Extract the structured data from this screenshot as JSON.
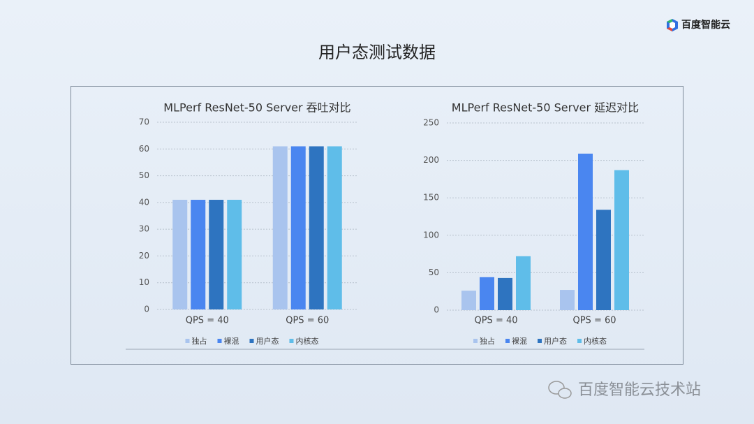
{
  "header": {
    "title": "用户态测试数据",
    "logo": "百度智能云"
  },
  "watermark": "百度智能云技术站",
  "chart_data": [
    {
      "type": "bar",
      "title": "MLPerf ResNet-50 Server 吞吐对比",
      "categories": [
        "QPS = 40",
        "QPS = 60"
      ],
      "series": [
        {
          "name": "独占",
          "color": "#a9c4ee",
          "values": [
            41,
            61
          ]
        },
        {
          "name": "裸混",
          "color": "#4a86f0",
          "values": [
            41,
            61
          ]
        },
        {
          "name": "用户态",
          "color": "#2e74c0",
          "values": [
            41,
            61
          ]
        },
        {
          "name": "内核态",
          "color": "#5fbde9",
          "values": [
            41,
            61
          ]
        }
      ],
      "ylim": [
        0,
        70
      ],
      "yticks": [
        0,
        10,
        20,
        30,
        40,
        50,
        60,
        70
      ],
      "grid": true,
      "legend": "bottom"
    },
    {
      "type": "bar",
      "title": "MLPerf ResNet-50 Server 延迟对比",
      "categories": [
        "QPS = 40",
        "QPS = 60"
      ],
      "series": [
        {
          "name": "独占",
          "color": "#a9c4ee",
          "values": [
            26,
            27
          ]
        },
        {
          "name": "裸混",
          "color": "#4a86f0",
          "values": [
            44,
            209
          ]
        },
        {
          "name": "用户态",
          "color": "#2e74c0",
          "values": [
            43,
            134
          ]
        },
        {
          "name": "内核态",
          "color": "#5fbde9",
          "values": [
            72,
            187
          ]
        }
      ],
      "ylim": [
        0,
        250
      ],
      "yticks": [
        0,
        50,
        100,
        150,
        200,
        250
      ],
      "grid": true,
      "legend": "bottom"
    }
  ]
}
